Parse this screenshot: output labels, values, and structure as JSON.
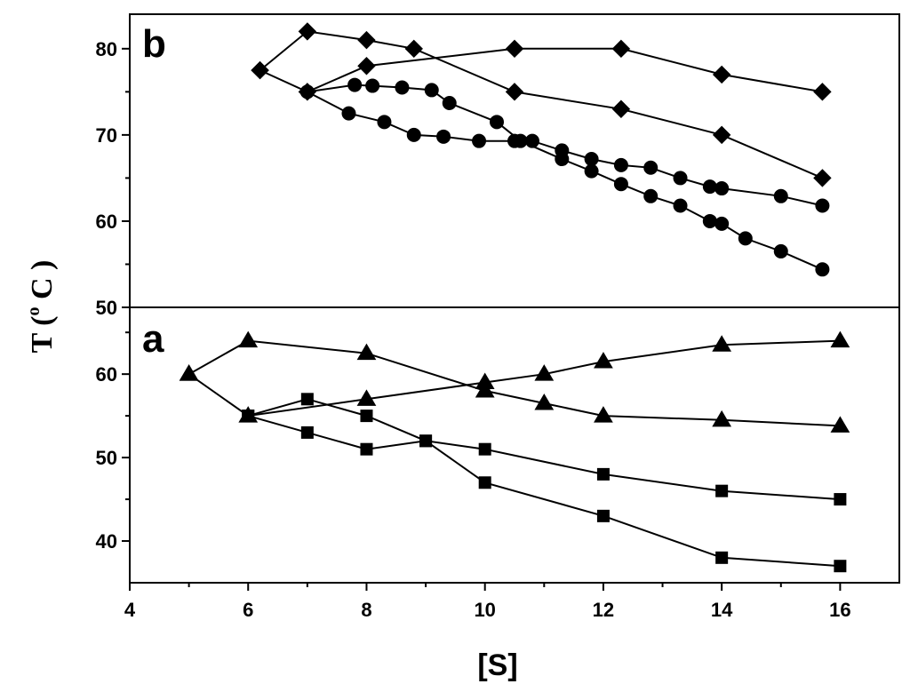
{
  "chart_data": {
    "type": "line",
    "xlabel": "[S]",
    "ylabel": {
      "prefix": "T (",
      "sup": "o",
      "suffix": " C )"
    },
    "x_ticks": [
      4,
      6,
      8,
      10,
      12,
      14,
      16
    ],
    "xlim": [
      4,
      17
    ],
    "panels": [
      {
        "id": "b",
        "label": "b",
        "ylim": [
          50,
          84
        ],
        "y_ticks": [
          50,
          60,
          70,
          80
        ],
        "y_minor_ticks": [
          55,
          65,
          75
        ],
        "series": [
          {
            "marker": "diamond",
            "x": [
              6.2,
              7.0,
              8.0,
              10.5,
              12.3,
              14.0,
              15.7
            ],
            "y": [
              77.5,
              75.0,
              78.0,
              80.0,
              80.0,
              77.0,
              75.0
            ]
          },
          {
            "marker": "diamond",
            "x": [
              6.2,
              7.0,
              8.0,
              8.8,
              10.5,
              12.3,
              14.0,
              15.7
            ],
            "y": [
              77.5,
              82.0,
              81.0,
              80.0,
              75.0,
              73.0,
              70.0,
              65.0
            ]
          },
          {
            "marker": "circle",
            "x": [
              7.0,
              7.7,
              8.3,
              8.8,
              9.3,
              9.9,
              10.5,
              10.8,
              11.3,
              11.8,
              12.3,
              12.8,
              13.3,
              13.8,
              14.0,
              15.0,
              15.7
            ],
            "y": [
              75.0,
              72.5,
              71.5,
              70.0,
              69.8,
              69.3,
              69.3,
              69.3,
              68.2,
              67.2,
              66.5,
              66.2,
              65.0,
              64.0,
              63.8,
              62.9,
              61.8
            ]
          },
          {
            "marker": "circle",
            "x": [
              7.0,
              7.8,
              8.1,
              8.6,
              9.1,
              9.4,
              10.2,
              10.6,
              11.3,
              11.8,
              12.3,
              12.8,
              13.3,
              13.8,
              14.0,
              14.4,
              15.0,
              15.7
            ],
            "y": [
              75.0,
              75.8,
              75.7,
              75.5,
              75.2,
              73.7,
              71.5,
              69.3,
              67.2,
              65.8,
              64.3,
              62.9,
              61.8,
              60.0,
              59.7,
              58.0,
              56.5,
              54.4
            ]
          }
        ]
      },
      {
        "id": "a",
        "label": "a",
        "ylim": [
          35,
          68
        ],
        "y_ticks": [
          40,
          50,
          60
        ],
        "y_minor_ticks": [
          45,
          55,
          65
        ],
        "series": [
          {
            "marker": "triangle",
            "x": [
              5,
              6,
              8,
              10,
              11,
              12,
              14,
              16
            ],
            "y": [
              60,
              55,
              57,
              59,
              60,
              61.5,
              63.5,
              64
            ]
          },
          {
            "marker": "triangle",
            "x": [
              5,
              6,
              8,
              10,
              11,
              12,
              14,
              16
            ],
            "y": [
              60,
              64,
              62.5,
              58,
              56.5,
              55,
              54.5,
              53.8
            ]
          },
          {
            "marker": "square",
            "x": [
              6,
              7,
              8,
              9,
              10,
              12,
              14,
              16
            ],
            "y": [
              55,
              53,
              51,
              52,
              51,
              48,
              46,
              45
            ]
          },
          {
            "marker": "square",
            "x": [
              6,
              7,
              8,
              9,
              10,
              12,
              14,
              16
            ],
            "y": [
              55,
              57,
              55,
              52,
              47,
              43,
              38,
              37
            ]
          }
        ]
      }
    ]
  }
}
